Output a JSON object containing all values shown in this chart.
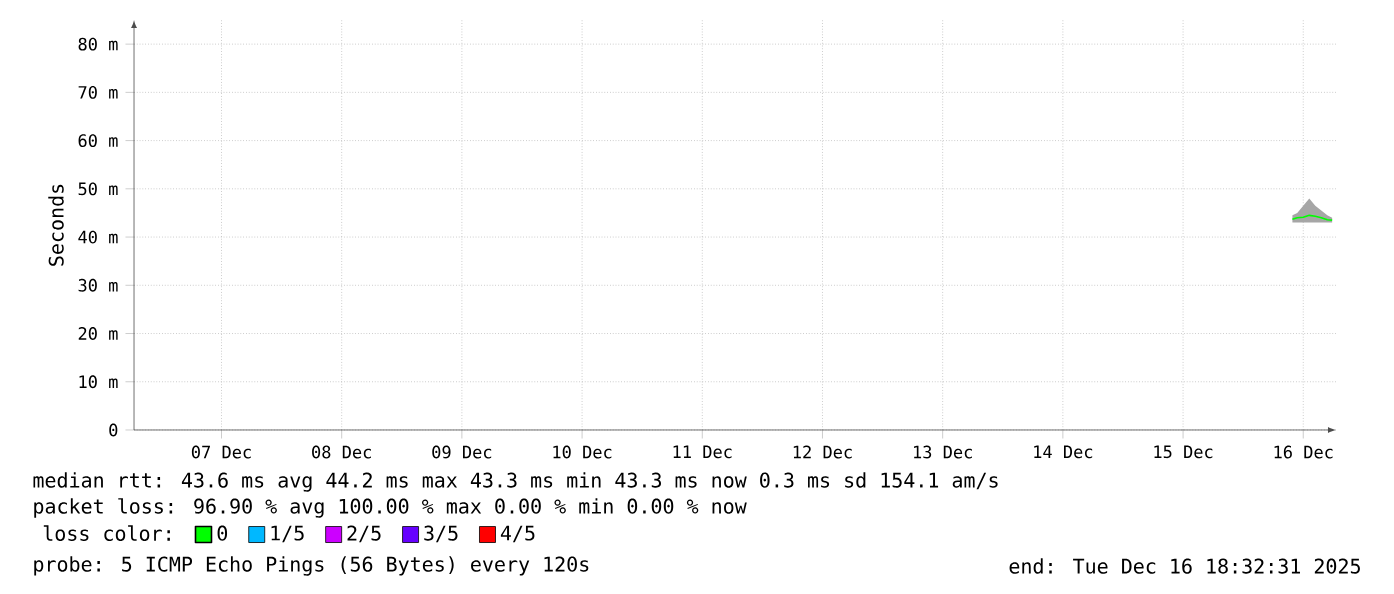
{
  "chart_data": {
    "type": "line",
    "ylabel": "Seconds",
    "legend_title": "loss color:",
    "legend": "bottom",
    "grid": true,
    "x": [
      "2025-12-16T09:50",
      "2025-12-16T10:48",
      "2025-12-16T12:00",
      "2025-12-16T13:12",
      "2025-12-16T14:24",
      "2025-12-16T15:36",
      "2025-12-16T16:48",
      "2025-12-16T17:46"
    ],
    "series": [
      {
        "name": "0",
        "color": "#00ff00",
        "values": [
          43.7,
          44.0,
          44.1,
          44.5,
          44.3,
          44.0,
          43.6,
          43.5
        ],
        "lower": [
          43.0,
          43.0,
          43.0,
          43.0,
          43.0,
          43.0,
          43.0,
          43.0
        ],
        "upper": [
          44.5,
          45.0,
          46.5,
          48.0,
          46.5,
          45.5,
          44.5,
          44.0
        ]
      },
      {
        "name": "1/5",
        "color": "#00b8ff",
        "values": [
          null,
          null,
          null,
          null,
          null,
          null,
          null,
          null
        ]
      },
      {
        "name": "2/5",
        "color": "#cc00ff",
        "values": [
          null,
          null,
          null,
          null,
          null,
          null,
          null,
          null
        ]
      },
      {
        "name": "3/5",
        "color": "#6600ff",
        "values": [
          null,
          null,
          null,
          null,
          null,
          null,
          null,
          null
        ]
      },
      {
        "name": "4/5",
        "color": "#ff0000",
        "values": [
          null,
          null,
          null,
          null,
          null,
          null,
          null,
          null
        ]
      }
    ],
    "xlim": [
      "2025-12-06T18:32",
      "2025-12-16T18:32"
    ],
    "xticks": [
      {
        "value": "2025-12-07T12:00",
        "label": "07 Dec"
      },
      {
        "value": "2025-12-08T12:00",
        "label": "08 Dec"
      },
      {
        "value": "2025-12-09T12:00",
        "label": "09 Dec"
      },
      {
        "value": "2025-12-10T12:00",
        "label": "10 Dec"
      },
      {
        "value": "2025-12-11T12:00",
        "label": "11 Dec"
      },
      {
        "value": "2025-12-12T12:00",
        "label": "12 Dec"
      },
      {
        "value": "2025-12-13T12:00",
        "label": "13 Dec"
      },
      {
        "value": "2025-12-14T12:00",
        "label": "14 Dec"
      },
      {
        "value": "2025-12-15T12:00",
        "label": "15 Dec"
      },
      {
        "value": "2025-12-16T12:00",
        "label": "16 Dec"
      }
    ],
    "ylim": [
      0,
      85
    ],
    "yticks": [
      0,
      {
        "value": 10,
        "label": "10 m"
      },
      {
        "value": 20,
        "label": "20 m"
      },
      {
        "value": 30,
        "label": "30 m"
      },
      {
        "value": 40,
        "label": "40 m"
      },
      {
        "value": 50,
        "label": "50 m"
      },
      {
        "value": 60,
        "label": "60 m"
      },
      {
        "value": 70,
        "label": "70 m"
      },
      {
        "value": 80,
        "label": "80 m"
      }
    ],
    "annotations": [
      "median rtt: 43.6 ms avg 44.2 ms max 43.3 ms min 43.3 ms now 0.3 ms sd 154.1 am/s",
      "packet loss: 96.90 % avg 100.00 % max 0.00 % min 0.00 % now",
      "probe: 5 ICMP Echo Pings (56 Bytes) every 120s",
      "end: Tue Dec 16 18:32:31 2025"
    ]
  }
}
